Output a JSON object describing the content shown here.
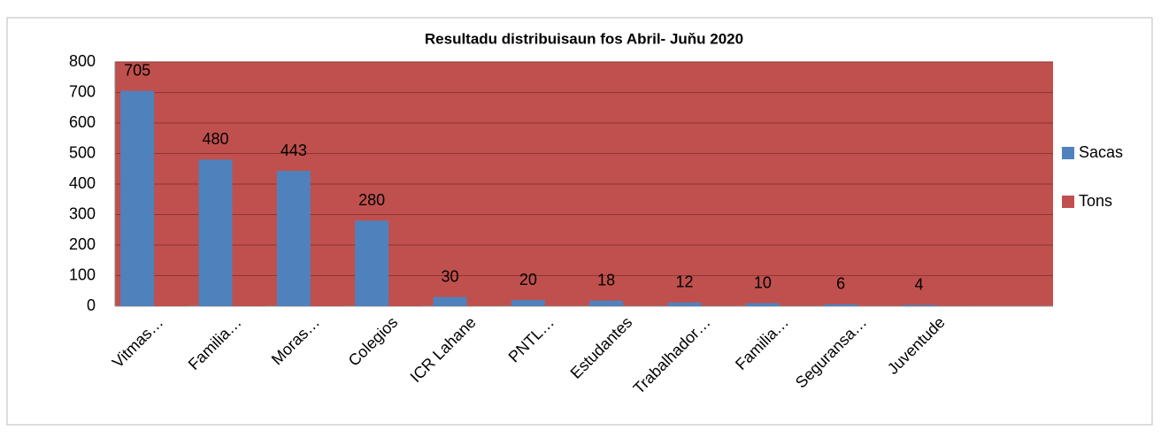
{
  "chart_data": {
    "type": "bar",
    "title": "Resultadu distribuisaun fos  Abril- Juňu 2020",
    "categories": [
      "Vitmas…",
      "Familia…",
      "Moras…",
      "Colegios",
      "ICR Lahane",
      "PNTL…",
      "Estudantes",
      "Trabalhador…",
      "Familia…",
      "Seguransa…",
      "Juventude",
      null
    ],
    "series": [
      {
        "name": "Sacas",
        "color": "#4f81bd",
        "values": [
          705,
          480,
          443,
          280,
          30,
          20,
          18,
          12,
          10,
          6,
          4,
          null
        ]
      },
      {
        "name": "Tons",
        "color": "#c0504d",
        "values": [
          17.6,
          12,
          11,
          7,
          0.8,
          0.5,
          0.5,
          0.3,
          0.3,
          0.2,
          0.1,
          null
        ]
      }
    ],
    "value_labels_series": 0,
    "ylim": [
      0,
      800
    ],
    "yticks": [
      0,
      100,
      200,
      300,
      400,
      500,
      600,
      700,
      800
    ],
    "grid": true,
    "plot_background": "#c0504d",
    "legend": "right"
  }
}
